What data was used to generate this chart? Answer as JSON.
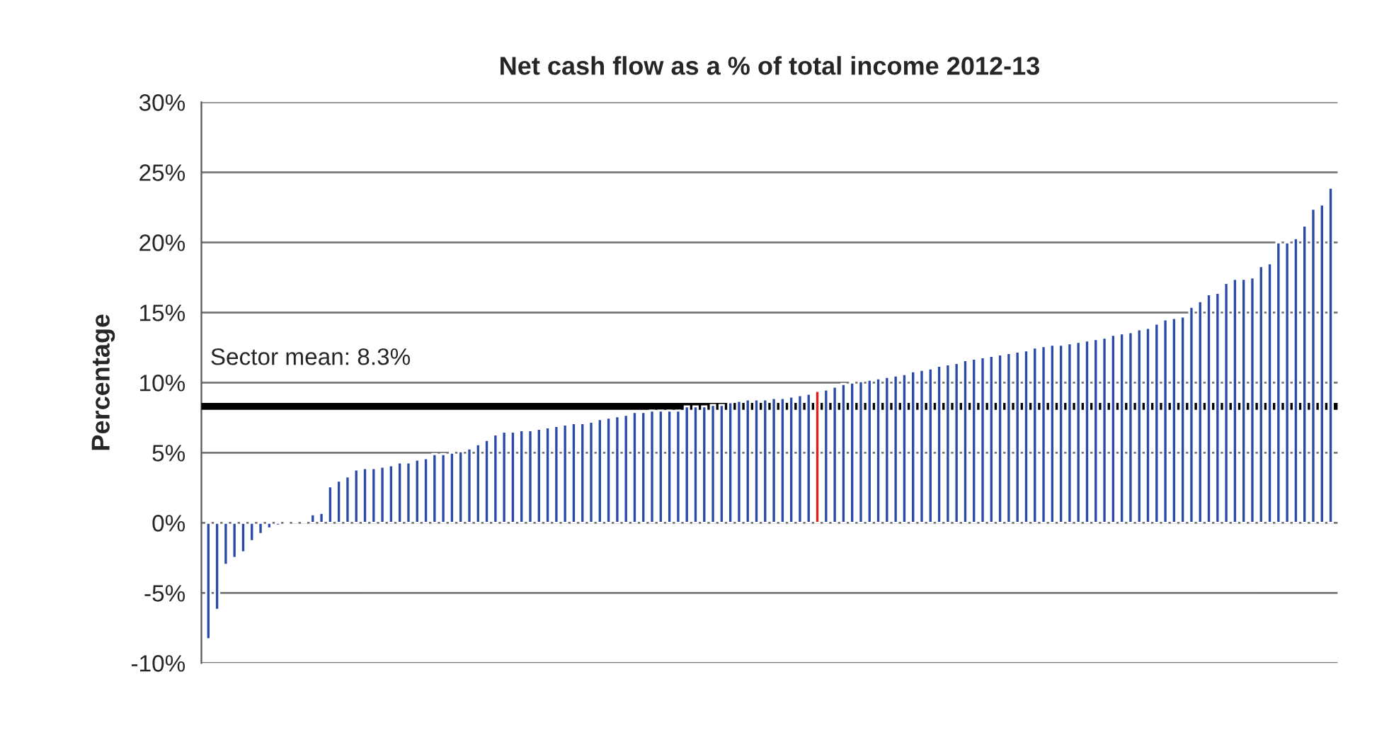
{
  "chart_data": {
    "type": "bar",
    "title": "Net cash flow as a % of total income 2012-13",
    "ylabel": "Percentage",
    "categories": [
      null,
      null,
      null,
      null,
      null,
      null,
      null,
      null,
      null,
      null,
      null,
      null,
      null,
      null,
      null,
      null,
      null,
      null,
      null,
      null,
      null,
      null,
      null,
      null,
      null,
      null,
      null,
      null,
      null,
      null,
      null,
      null,
      null,
      null,
      null,
      null,
      null,
      null,
      null,
      null,
      null,
      null,
      null,
      null,
      null,
      null,
      null,
      null,
      null,
      null,
      null,
      null,
      null,
      null,
      null,
      null,
      null,
      null,
      null,
      null,
      null,
      null,
      null,
      null,
      null,
      null,
      null,
      null,
      null,
      null,
      null,
      null,
      null,
      null,
      null,
      null,
      null,
      null,
      null,
      null,
      null,
      null,
      null,
      null,
      null,
      null,
      null,
      null,
      null,
      null,
      null,
      null,
      null,
      null,
      null,
      null,
      null,
      null,
      null,
      null,
      null,
      null,
      null,
      null,
      null,
      null,
      null,
      null,
      null,
      null,
      null,
      null,
      null,
      null,
      null,
      null,
      null,
      null,
      null,
      null,
      null,
      null,
      null,
      null,
      null,
      null,
      null,
      null,
      null,
      null
    ],
    "values": [
      -8.3,
      -6.2,
      -3.0,
      -2.5,
      -2.1,
      -1.3,
      -0.8,
      -0.4,
      -0.2,
      -0.1,
      0.1,
      0.1,
      0.6,
      0.7,
      2.6,
      3.0,
      3.3,
      3.8,
      3.9,
      3.9,
      4.0,
      4.1,
      4.3,
      4.3,
      4.5,
      4.6,
      4.9,
      4.9,
      5.0,
      5.1,
      5.3,
      5.6,
      5.9,
      6.3,
      6.5,
      6.5,
      6.6,
      6.6,
      6.7,
      6.8,
      6.9,
      7.0,
      7.1,
      7.1,
      7.2,
      7.4,
      7.5,
      7.6,
      7.7,
      7.9,
      7.9,
      8.0,
      8.0,
      8.0,
      8.0,
      8.3,
      8.3,
      8.3,
      8.4,
      8.4,
      8.6,
      8.7,
      8.8,
      8.8,
      8.8,
      8.9,
      8.9,
      9.0,
      9.1,
      9.2,
      9.4,
      9.5,
      9.7,
      9.9,
      10.0,
      10.1,
      10.2,
      10.3,
      10.4,
      10.5,
      10.6,
      10.8,
      10.9,
      11.0,
      11.2,
      11.3,
      11.4,
      11.6,
      11.7,
      11.8,
      11.9,
      12.0,
      12.1,
      12.2,
      12.3,
      12.5,
      12.6,
      12.7,
      12.7,
      12.8,
      12.9,
      13.0,
      13.1,
      13.2,
      13.4,
      13.5,
      13.6,
      13.8,
      13.9,
      14.2,
      14.5,
      14.6,
      14.7,
      15.4,
      15.8,
      16.3,
      16.4,
      17.1,
      17.4,
      17.4,
      17.5,
      18.3,
      18.5,
      20.0,
      20.0,
      20.3,
      21.2,
      22.4,
      22.7,
      23.9
    ],
    "colors": [
      "#2a4aa8",
      "#2a4aa8",
      "#2a4aa8",
      "#2a4aa8",
      "#2a4aa8",
      "#2a4aa8",
      "#2a4aa8",
      "#2a4aa8",
      "#2a4aa8",
      "#2a4aa8",
      "#2a4aa8",
      "#2a4aa8",
      "#2a4aa8",
      "#2a4aa8",
      "#2a4aa8",
      "#2a4aa8",
      "#2a4aa8",
      "#2a4aa8",
      "#2a4aa8",
      "#2a4aa8",
      "#2a4aa8",
      "#2a4aa8",
      "#2a4aa8",
      "#2a4aa8",
      "#2a4aa8",
      "#2a4aa8",
      "#2a4aa8",
      "#2a4aa8",
      "#2a4aa8",
      "#2a4aa8",
      "#2a4aa8",
      "#2a4aa8",
      "#2a4aa8",
      "#2a4aa8",
      "#2a4aa8",
      "#2a4aa8",
      "#2a4aa8",
      "#2a4aa8",
      "#2a4aa8",
      "#2a4aa8",
      "#2a4aa8",
      "#2a4aa8",
      "#2a4aa8",
      "#2a4aa8",
      "#2a4aa8",
      "#2a4aa8",
      "#2a4aa8",
      "#2a4aa8",
      "#2a4aa8",
      "#2a4aa8",
      "#2a4aa8",
      "#2a4aa8",
      "#2a4aa8",
      "#2a4aa8",
      "#2a4aa8",
      "#2a4aa8",
      "#2a4aa8",
      "#2a4aa8",
      "#2a4aa8",
      "#2a4aa8",
      "#2a4aa8",
      "#2a4aa8",
      "#2a4aa8",
      "#2a4aa8",
      "#2a4aa8",
      "#2a4aa8",
      "#2a4aa8",
      "#2a4aa8",
      "#2a4aa8",
      "#2a4aa8",
      "#e02020",
      "#2a4aa8",
      "#2a4aa8",
      "#2a4aa8",
      "#2a4aa8",
      "#2a4aa8",
      "#2a4aa8",
      "#2a4aa8",
      "#2a4aa8",
      "#2a4aa8",
      "#2a4aa8",
      "#2a4aa8",
      "#2a4aa8",
      "#2a4aa8",
      "#2a4aa8",
      "#2a4aa8",
      "#2a4aa8",
      "#2a4aa8",
      "#2a4aa8",
      "#2a4aa8",
      "#2a4aa8",
      "#2a4aa8",
      "#2a4aa8",
      "#2a4aa8",
      "#2a4aa8",
      "#2a4aa8",
      "#2a4aa8",
      "#2a4aa8",
      "#2a4aa8",
      "#2a4aa8",
      "#2a4aa8",
      "#2a4aa8",
      "#2a4aa8",
      "#2a4aa8",
      "#2a4aa8",
      "#2a4aa8",
      "#2a4aa8",
      "#2a4aa8",
      "#2a4aa8",
      "#2a4aa8",
      "#2a4aa8",
      "#2a4aa8",
      "#2a4aa8",
      "#2a4aa8",
      "#2a4aa8",
      "#2a4aa8",
      "#2a4aa8",
      "#2a4aa8",
      "#2a4aa8",
      "#2a4aa8",
      "#2a4aa8",
      "#2a4aa8",
      "#2a4aa8",
      "#2a4aa8",
      "#2a4aa8",
      "#2a4aa8",
      "#2a4aa8",
      "#2a4aa8",
      "#2a4aa8",
      "#2a4aa8"
    ],
    "ylim": [
      -10,
      30
    ],
    "yticks": [
      {
        "value": -10,
        "label": "-10%"
      },
      {
        "value": -5,
        "label": "-5%"
      },
      {
        "value": 0,
        "label": "0%"
      },
      {
        "value": 5,
        "label": "5%"
      },
      {
        "value": 10,
        "label": "10%"
      },
      {
        "value": 15,
        "label": "15%"
      },
      {
        "value": 20,
        "label": "20%"
      },
      {
        "value": 25,
        "label": "25%"
      },
      {
        "value": 30,
        "label": "30%"
      }
    ],
    "ref_lines": [
      {
        "axis": "y",
        "value": 8.3,
        "label": "Sector mean: 8.3%",
        "color": "#000000"
      }
    ],
    "grid": "y",
    "legend": false
  }
}
